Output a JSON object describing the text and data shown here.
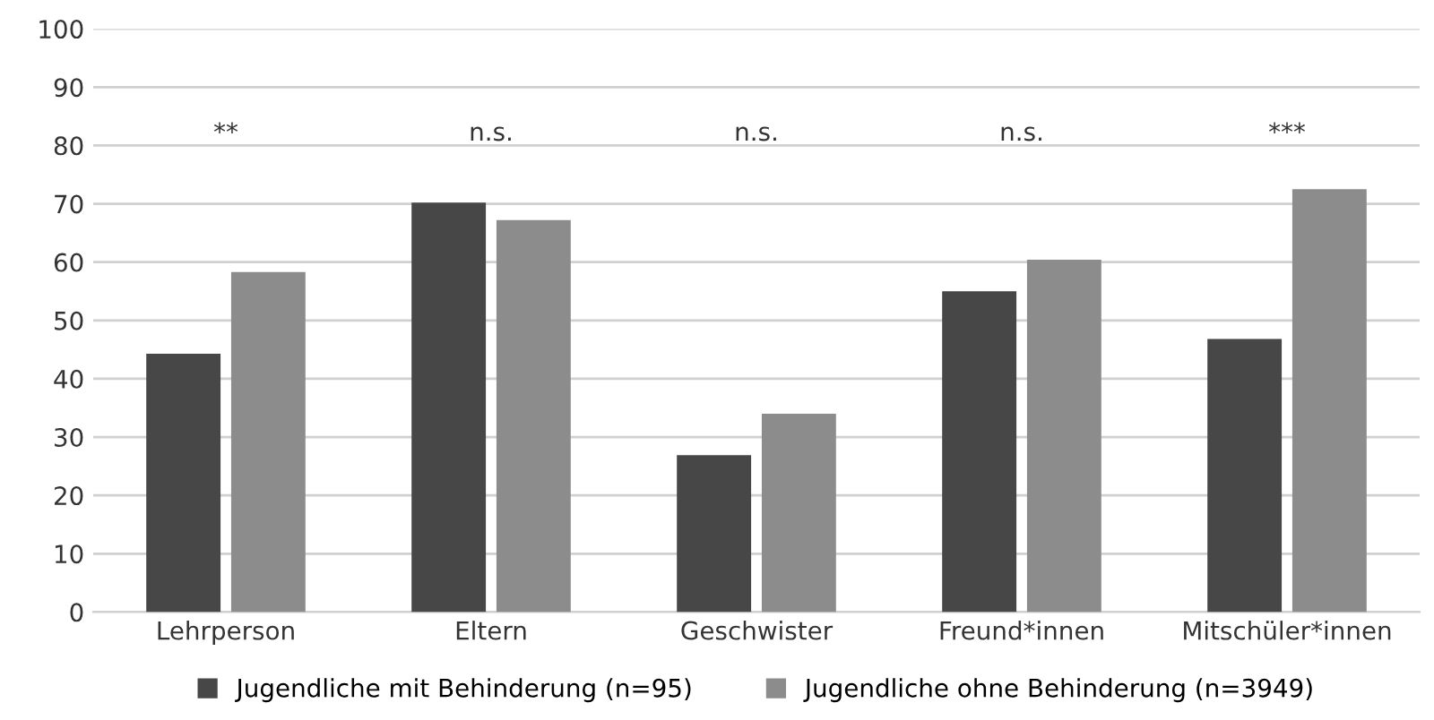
{
  "chart_data": {
    "type": "bar",
    "categories": [
      "Lehrperson",
      "Eltern",
      "Geschwister",
      "Freund*innen",
      "Mitschüler*innen"
    ],
    "series": [
      {
        "name": "Jugendliche mit Behinderung (n=95)",
        "color": "#474747",
        "values": [
          44.3,
          70.2,
          26.9,
          55.0,
          46.8
        ]
      },
      {
        "name": "Jugendliche ohne Behinderung (n=3949)",
        "color": "#8c8c8c",
        "values": [
          58.3,
          67.2,
          34.0,
          60.4,
          72.5
        ]
      }
    ],
    "ylim": [
      0,
      100
    ],
    "yticks": [
      0,
      10,
      20,
      30,
      40,
      50,
      60,
      70,
      80,
      90,
      100
    ],
    "grid": "y",
    "legend": "bottom",
    "annotations": [
      "**",
      "n.s.",
      "n.s.",
      "n.s.",
      "***"
    ]
  }
}
